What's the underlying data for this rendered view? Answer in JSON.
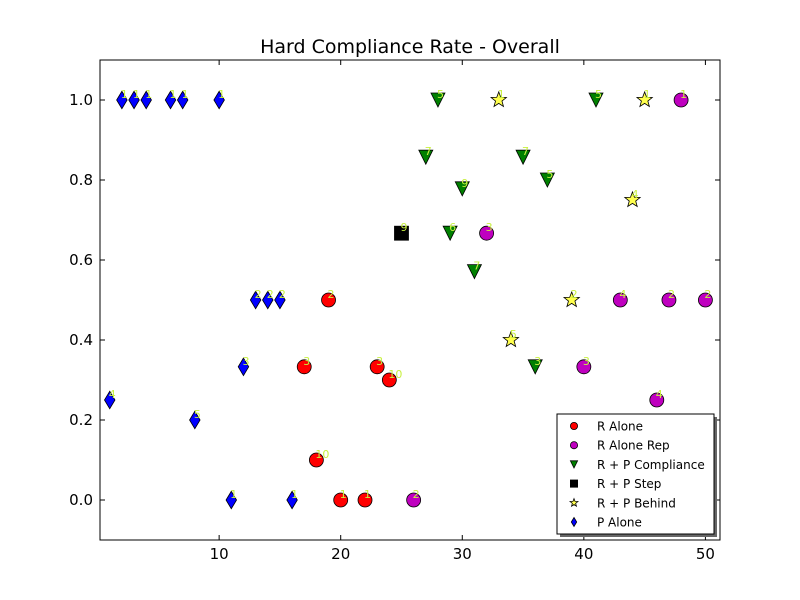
{
  "chart_data": {
    "type": "scatter",
    "title": "Hard Compliance Rate - Overall",
    "xlabel": "",
    "ylabel": "",
    "xlim": [
      0.2,
      51.2
    ],
    "ylim": [
      -0.1,
      1.1
    ],
    "xticks": [
      10,
      20,
      30,
      40,
      50
    ],
    "yticks": [
      0.0,
      0.2,
      0.4,
      0.6,
      0.8,
      1.0
    ],
    "ytick_labels": [
      "0.0",
      "0.2",
      "0.4",
      "0.6",
      "0.8",
      "1.0"
    ],
    "grid": false,
    "legend_position": "lower-right",
    "point_label_color": "#c8f040",
    "series": [
      {
        "name": "R Alone",
        "marker": "circle",
        "color": "#ff0000",
        "points": [
          {
            "x": 17,
            "y": 0.333,
            "label": "3"
          },
          {
            "x": 18,
            "y": 0.1,
            "label": "10"
          },
          {
            "x": 19,
            "y": 0.5,
            "label": "2"
          },
          {
            "x": 20,
            "y": 0.0,
            "label": "1"
          },
          {
            "x": 22,
            "y": 0.0,
            "label": "1"
          },
          {
            "x": 23,
            "y": 0.333,
            "label": "3"
          },
          {
            "x": 24,
            "y": 0.3,
            "label": "10"
          }
        ]
      },
      {
        "name": "R Alone Rep",
        "marker": "circle",
        "color": "#bf00bf",
        "points": [
          {
            "x": 26,
            "y": 0.0,
            "label": "2"
          },
          {
            "x": 32,
            "y": 0.667,
            "label": "3"
          },
          {
            "x": 40,
            "y": 0.333,
            "label": "3"
          },
          {
            "x": 43,
            "y": 0.5,
            "label": "4"
          },
          {
            "x": 46,
            "y": 0.25,
            "label": "4"
          },
          {
            "x": 47,
            "y": 0.5,
            "label": "2"
          },
          {
            "x": 48,
            "y": 1.0,
            "label": "1"
          },
          {
            "x": 50,
            "y": 0.5,
            "label": "2"
          }
        ]
      },
      {
        "name": "R + P Compliance",
        "marker": "triangle-down",
        "color": "#008000",
        "points": [
          {
            "x": 27,
            "y": 0.857,
            "label": "7"
          },
          {
            "x": 28,
            "y": 1.0,
            "label": "5"
          },
          {
            "x": 29,
            "y": 0.667,
            "label": "6"
          },
          {
            "x": 30,
            "y": 0.778,
            "label": "9"
          },
          {
            "x": 31,
            "y": 0.571,
            "label": "7"
          },
          {
            "x": 35,
            "y": 0.857,
            "label": "7"
          },
          {
            "x": 36,
            "y": 0.333,
            "label": "3"
          },
          {
            "x": 37,
            "y": 0.8,
            "label": "5"
          },
          {
            "x": 41,
            "y": 1.0,
            "label": "5"
          }
        ]
      },
      {
        "name": "R + P Step",
        "marker": "square",
        "color": "#000000",
        "points": [
          {
            "x": 25,
            "y": 0.667,
            "label": "9"
          }
        ]
      },
      {
        "name": "R + P Behind",
        "marker": "star",
        "color": "#ffff4d",
        "points": [
          {
            "x": 33,
            "y": 1.0,
            "label": "1"
          },
          {
            "x": 34,
            "y": 0.4,
            "label": "5"
          },
          {
            "x": 39,
            "y": 0.5,
            "label": "2"
          },
          {
            "x": 44,
            "y": 0.75,
            "label": "4"
          },
          {
            "x": 45,
            "y": 1.0,
            "label": "1"
          }
        ]
      },
      {
        "name": "P Alone",
        "marker": "diamond",
        "color": "#0000ff",
        "points": [
          {
            "x": 1,
            "y": 0.25,
            "label": "4"
          },
          {
            "x": 2,
            "y": 1.0,
            "label": "1"
          },
          {
            "x": 3,
            "y": 1.0,
            "label": "1"
          },
          {
            "x": 4,
            "y": 1.0,
            "label": "1"
          },
          {
            "x": 6,
            "y": 1.0,
            "label": "1"
          },
          {
            "x": 7,
            "y": 1.0,
            "label": "1"
          },
          {
            "x": 8,
            "y": 0.2,
            "label": "5"
          },
          {
            "x": 10,
            "y": 1.0,
            "label": "1"
          },
          {
            "x": 11,
            "y": 0.0,
            "label": "1"
          },
          {
            "x": 12,
            "y": 0.333,
            "label": "3"
          },
          {
            "x": 13,
            "y": 0.5,
            "label": "2"
          },
          {
            "x": 14,
            "y": 0.5,
            "label": "2"
          },
          {
            "x": 15,
            "y": 0.5,
            "label": "2"
          },
          {
            "x": 16,
            "y": 0.0,
            "label": "1"
          }
        ]
      }
    ]
  }
}
